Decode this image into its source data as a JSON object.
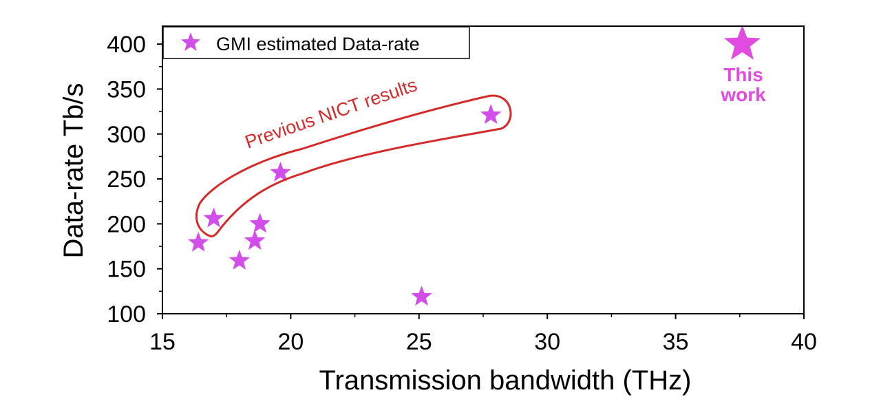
{
  "chart_data": {
    "type": "scatter",
    "xlabel": "Transmission bandwidth (THz)",
    "ylabel": "Data-rate Tb/s",
    "xlim": [
      15,
      40
    ],
    "ylim": [
      100,
      420
    ],
    "x_ticks": [
      15,
      20,
      25,
      30,
      35,
      40
    ],
    "y_ticks": [
      100,
      150,
      200,
      250,
      300,
      350,
      400
    ],
    "grid": false,
    "legend": {
      "placement": "top-left",
      "entries": [
        "GMI estimated Data-rate"
      ]
    },
    "series": [
      {
        "name": "GMI estimated Data-rate",
        "marker": "star",
        "color": "#d24ee8",
        "points": [
          {
            "x": 16.4,
            "y": 179
          },
          {
            "x": 17.0,
            "y": 206
          },
          {
            "x": 18.0,
            "y": 159
          },
          {
            "x": 18.6,
            "y": 181
          },
          {
            "x": 18.8,
            "y": 200
          },
          {
            "x": 19.6,
            "y": 257
          },
          {
            "x": 25.1,
            "y": 119
          },
          {
            "x": 27.8,
            "y": 321
          },
          {
            "x": 37.6,
            "y": 400,
            "highlight": true
          }
        ]
      }
    ],
    "annotations": {
      "previous": "Previous NICT results",
      "this_work_line1": "This",
      "this_work_line2": "work"
    }
  },
  "colors": {
    "star": "#d24ee8",
    "highlight": "#e04be0",
    "outline": "#d42a2a",
    "axis": "#000000"
  }
}
